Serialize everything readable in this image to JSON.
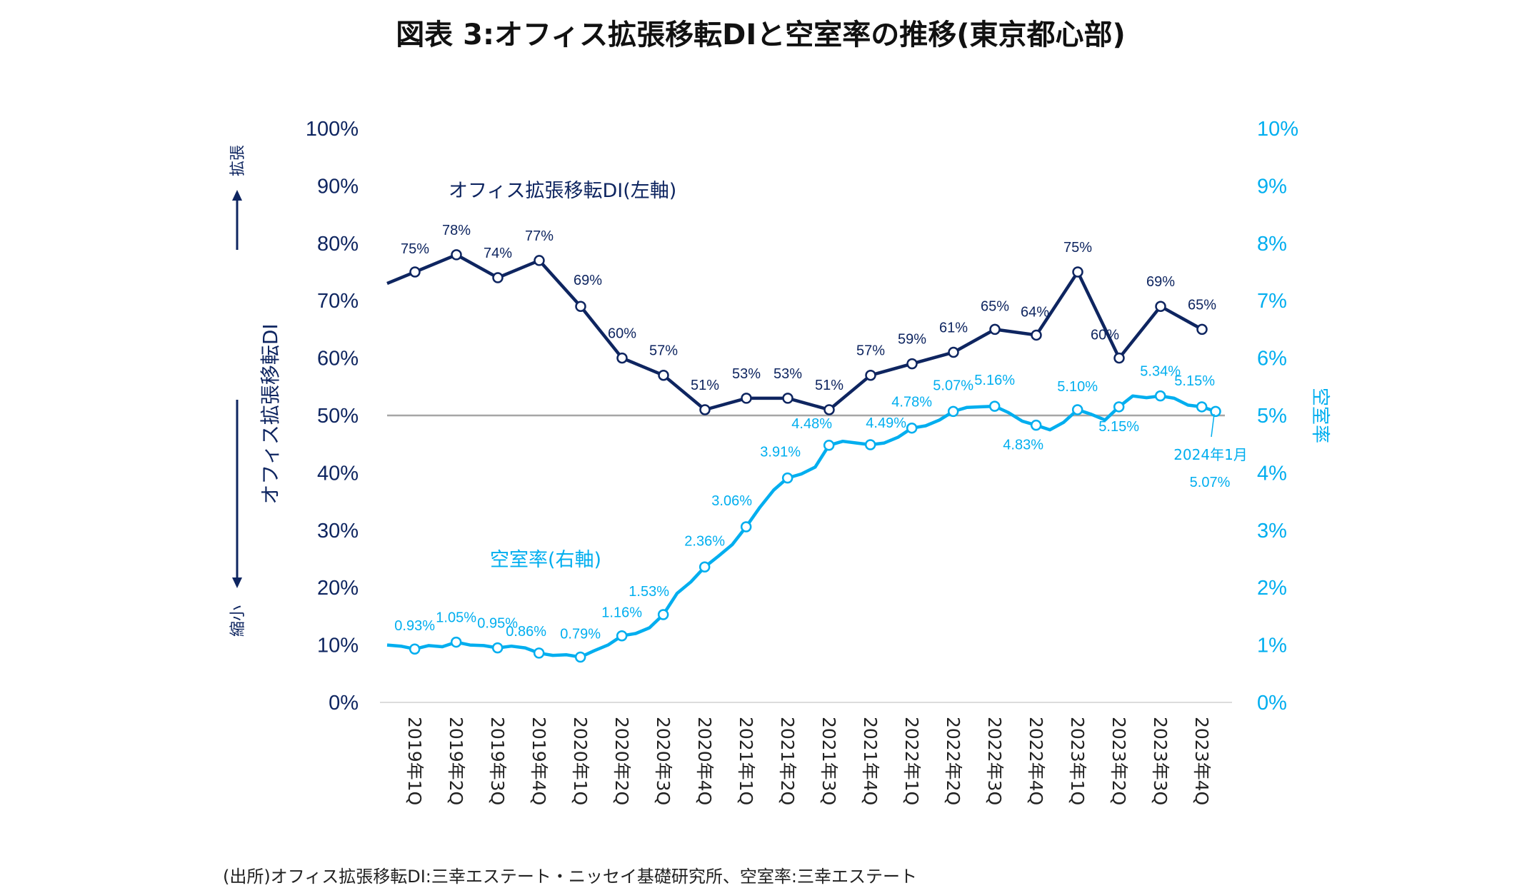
{
  "title": "図表 3:オフィス拡張移転DIと空室率の推移(東京都心部)",
  "source": "(出所)オフィス拡張移転DI:三幸エステート・ニッセイ基礎研究所、空室率:三幸エステート",
  "left_axis": {
    "title": "オフィス拡張移転DI",
    "top_note": "拡張",
    "bottom_note": "縮小",
    "ticks": [
      "0%",
      "10%",
      "20%",
      "30%",
      "40%",
      "50%",
      "60%",
      "70%",
      "80%",
      "90%",
      "100%"
    ]
  },
  "right_axis": {
    "title": "空室率",
    "ticks": [
      "0%",
      "1%",
      "2%",
      "3%",
      "4%",
      "5%",
      "6%",
      "7%",
      "8%",
      "9%",
      "10%"
    ]
  },
  "colors": {
    "di": "#0e2560",
    "vacancy": "#00aeef",
    "reference_line": "#a6a6a6"
  },
  "chart_data": {
    "type": "line",
    "title": "図表 3:オフィス拡張移転DIと空室率の推移(東京都心部)",
    "xlabel": "",
    "categories": [
      "2019年1Q",
      "2019年2Q",
      "2019年3Q",
      "2019年4Q",
      "2020年1Q",
      "2020年2Q",
      "2020年3Q",
      "2020年4Q",
      "2021年1Q",
      "2021年2Q",
      "2021年3Q",
      "2021年4Q",
      "2022年1Q",
      "2022年2Q",
      "2022年3Q",
      "2022年4Q",
      "2023年1Q",
      "2023年2Q",
      "2023年3Q",
      "2023年4Q"
    ],
    "reference_line": 50,
    "grid": false,
    "di_series": {
      "name": "オフィス拡張移転DI(左軸)",
      "axis": "left",
      "ylim": [
        0,
        100
      ],
      "start_value": 73,
      "values": [
        75,
        78,
        74,
        77,
        69,
        60,
        57,
        51,
        53,
        53,
        51,
        57,
        59,
        61,
        65,
        64,
        75,
        60,
        69,
        65
      ],
      "labels": [
        "75%",
        "78%",
        "74%",
        "77%",
        "69%",
        "60%",
        "57%",
        "51%",
        "53%",
        "53%",
        "51%",
        "57%",
        "59%",
        "61%",
        "65%",
        "64%",
        "75%",
        "60%",
        "69%",
        "65%"
      ]
    },
    "vacancy_series": {
      "name": "空室率(右軸)",
      "axis": "right",
      "ylim": [
        0,
        10
      ],
      "monthly_values": [
        1.0,
        0.98,
        0.93,
        0.99,
        0.97,
        1.05,
        1.0,
        0.99,
        0.95,
        0.98,
        0.95,
        0.86,
        0.82,
        0.83,
        0.79,
        0.9,
        1.0,
        1.16,
        1.2,
        1.3,
        1.53,
        1.9,
        2.1,
        2.36,
        2.55,
        2.75,
        3.06,
        3.4,
        3.7,
        3.91,
        3.98,
        4.1,
        4.48,
        4.55,
        4.52,
        4.49,
        4.52,
        4.62,
        4.78,
        4.82,
        4.92,
        5.07,
        5.14,
        5.15,
        5.16,
        5.05,
        4.9,
        4.83,
        4.75,
        4.88,
        5.1,
        5.02,
        4.92,
        5.15,
        5.34,
        5.31,
        5.34,
        5.3,
        5.18,
        5.15,
        5.07
      ],
      "quarter_labels": [
        "0.93%",
        "1.05%",
        "0.95%",
        "0.86%",
        "0.79%",
        "1.16%",
        "1.53%",
        "2.36%",
        "3.06%",
        "3.91%",
        "4.48%",
        "4.49%",
        "4.78%",
        "5.07%",
        "5.16%",
        "4.83%",
        "5.10%",
        "5.15%",
        "5.34%",
        "5.15%"
      ],
      "latest": {
        "label": "2024年1月",
        "value_label": "5.07%"
      }
    }
  }
}
